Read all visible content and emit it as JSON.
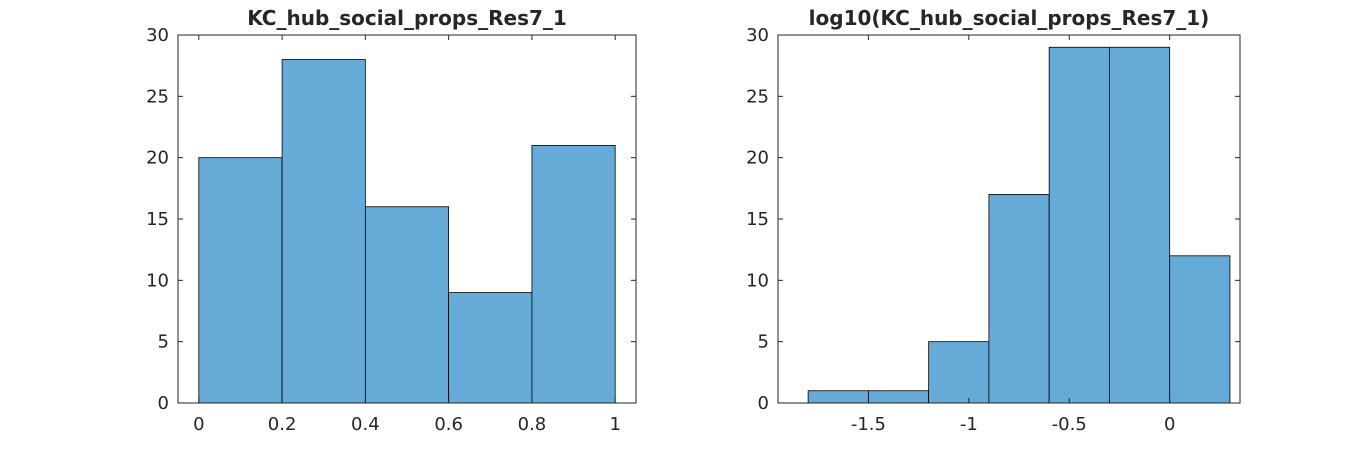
{
  "chart_data": [
    {
      "type": "bar",
      "title": "KC_hub_social_props_Res7_1",
      "xlabel": "",
      "ylabel": "",
      "xlim": [
        -0.05,
        1.05
      ],
      "ylim": [
        0,
        30
      ],
      "xticks": [
        0,
        0.2,
        0.4,
        0.6,
        0.8,
        1
      ],
      "xtick_labels": [
        "0",
        "0.2",
        "0.4",
        "0.6",
        "0.8",
        "1"
      ],
      "yticks": [
        0,
        5,
        10,
        15,
        20,
        25,
        30
      ],
      "ytick_labels": [
        "0",
        "5",
        "10",
        "15",
        "20",
        "25",
        "30"
      ],
      "bin_edges": [
        0,
        0.2,
        0.4,
        0.6,
        0.8,
        1.0
      ],
      "values": [
        20,
        28,
        16,
        9,
        21
      ],
      "bar_color": "#66aad8",
      "edge_color": "#000000",
      "grid": false
    },
    {
      "type": "bar",
      "title": "log10(KC_hub_social_props_Res7_1)",
      "xlabel": "",
      "ylabel": "",
      "xlim": [
        -1.95,
        0.35
      ],
      "ylim": [
        0,
        30
      ],
      "xticks": [
        -1.5,
        -1,
        -0.5,
        0
      ],
      "xtick_labels": [
        "-1.5",
        "-1",
        "-0.5",
        "0"
      ],
      "yticks": [
        0,
        5,
        10,
        15,
        20,
        25,
        30
      ],
      "ytick_labels": [
        "0",
        "5",
        "10",
        "15",
        "20",
        "25",
        "30"
      ],
      "bin_edges": [
        -1.8,
        -1.5,
        -1.2,
        -0.9,
        -0.6,
        -0.3,
        0.0,
        0.3
      ],
      "values": [
        1,
        1,
        5,
        17,
        29,
        29,
        12
      ],
      "bar_color": "#66aad8",
      "edge_color": "#000000",
      "grid": false
    }
  ]
}
